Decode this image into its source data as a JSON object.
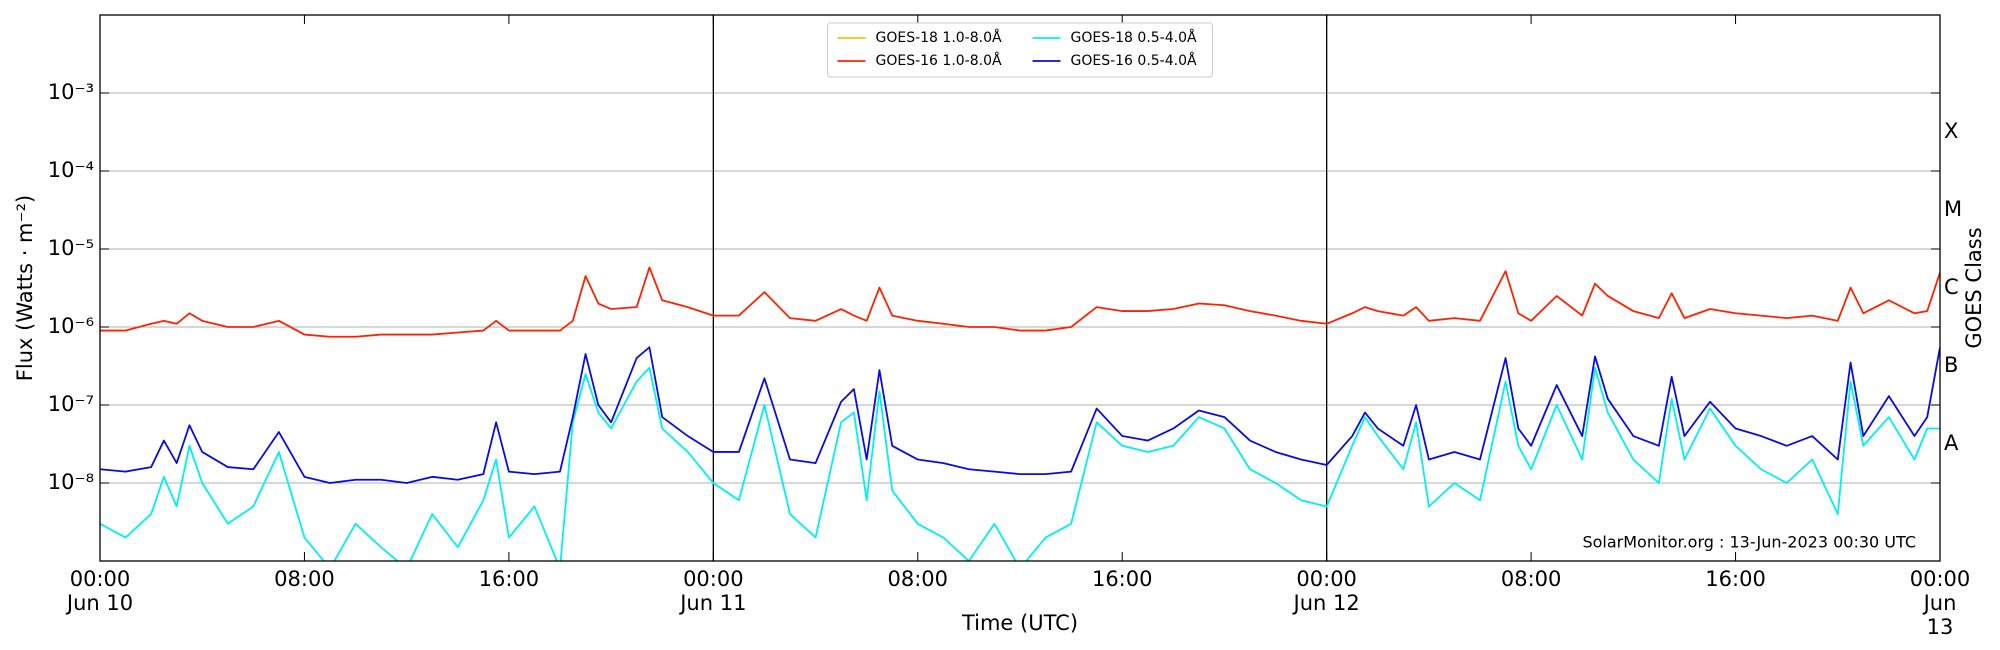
{
  "chart_data": {
    "type": "line",
    "ylabel": "Flux (Watts · m⁻²)",
    "xlabel": "Time (UTC)",
    "y2label": "GOES Class",
    "annotation": "SolarMonitor.org : 13-Jun-2023 00:30 UTC",
    "log_scale": true,
    "grid": true,
    "legend_position": "upper center",
    "xlim": [
      0,
      72
    ],
    "xticks": [
      {
        "value": 0,
        "label": "00:00\nJun 10"
      },
      {
        "value": 8,
        "label": "08:00"
      },
      {
        "value": 16,
        "label": "16:00"
      },
      {
        "value": 24,
        "label": "00:00\nJun 11"
      },
      {
        "value": 32,
        "label": "08:00"
      },
      {
        "value": 40,
        "label": "16:00"
      },
      {
        "value": 48,
        "label": "00:00\nJun 12"
      },
      {
        "value": 56,
        "label": "08:00"
      },
      {
        "value": 64,
        "label": "16:00"
      },
      {
        "value": 72,
        "label": "00:00\nJun 13"
      }
    ],
    "vlines": [
      24,
      48
    ],
    "ylim": [
      1e-09,
      0.01
    ],
    "yticks": [
      {
        "value": 1e-08,
        "label": "10⁻⁸"
      },
      {
        "value": 1e-07,
        "label": "10⁻⁷"
      },
      {
        "value": 1e-06,
        "label": "10⁻⁶"
      },
      {
        "value": 1e-05,
        "label": "10⁻⁵"
      },
      {
        "value": 0.0001,
        "label": "10⁻⁴"
      },
      {
        "value": 0.001,
        "label": "10⁻³"
      }
    ],
    "y2lim": [
      1e-09,
      0.01
    ],
    "y2ticks": [
      {
        "value": 3.16e-08,
        "label": "A"
      },
      {
        "value": 3.16e-07,
        "label": "B"
      },
      {
        "value": 3.16e-06,
        "label": "C"
      },
      {
        "value": 3.16e-05,
        "label": "M"
      },
      {
        "value": 0.000316,
        "label": "X"
      }
    ],
    "x": [
      0,
      1,
      2,
      2.5,
      3,
      3.5,
      4,
      5,
      6,
      7,
      8,
      9,
      10,
      11,
      12,
      13,
      14,
      15,
      15.5,
      16,
      17,
      18,
      18.5,
      19,
      19.5,
      20,
      21,
      21.5,
      22,
      23,
      24,
      25,
      26,
      27,
      28,
      29,
      29.5,
      30,
      30.5,
      31,
      32,
      33,
      34,
      35,
      36,
      37,
      38,
      39,
      40,
      41,
      42,
      43,
      44,
      45,
      46,
      47,
      48,
      49,
      49.5,
      50,
      51,
      51.5,
      52,
      53,
      54,
      55,
      55.5,
      56,
      57,
      58,
      58.5,
      59,
      60,
      61,
      61.5,
      62,
      63,
      64,
      65,
      66,
      67,
      68,
      68.5,
      69,
      70,
      71,
      71.5,
      72
    ],
    "series": [
      {
        "name": "GOES-18 1.0-8.0Å",
        "color": "#f5c400",
        "values": [
          null,
          null,
          null,
          null,
          null,
          null,
          null,
          null,
          null,
          null,
          null,
          null,
          null,
          null,
          null,
          null,
          null,
          null,
          null,
          null,
          null,
          null,
          null,
          null,
          null,
          null,
          null,
          null,
          null,
          null,
          null,
          null,
          null,
          null,
          null,
          null,
          null,
          null,
          null,
          null,
          null,
          null,
          null,
          null,
          null,
          null,
          null,
          null,
          null,
          null,
          null,
          null,
          null,
          null,
          null,
          null,
          null,
          null,
          null,
          null,
          null,
          null,
          null,
          null,
          null,
          null,
          null,
          null,
          null,
          null,
          null,
          null,
          null,
          null,
          null,
          null,
          null,
          null,
          null,
          null,
          null,
          null,
          null,
          null,
          null,
          null,
          null,
          null
        ]
      },
      {
        "name": "GOES-16 1.0-8.0Å",
        "color": "#ff2200",
        "values": [
          9e-07,
          9e-07,
          1.1e-06,
          1.2e-06,
          1.1e-06,
          1.5e-06,
          1.2e-06,
          1e-06,
          1e-06,
          1.2e-06,
          8e-07,
          7.5e-07,
          7.5e-07,
          8e-07,
          8e-07,
          8e-07,
          8.5e-07,
          9e-07,
          1.2e-06,
          9e-07,
          9e-07,
          9e-07,
          1.2e-06,
          4.5e-06,
          2e-06,
          1.7e-06,
          1.8e-06,
          5.8e-06,
          2.2e-06,
          1.8e-06,
          1.4e-06,
          1.4e-06,
          2.8e-06,
          1.3e-06,
          1.2e-06,
          1.7e-06,
          1.4e-06,
          1.2e-06,
          3.2e-06,
          1.4e-06,
          1.2e-06,
          1.1e-06,
          1e-06,
          1e-06,
          9e-07,
          9e-07,
          1e-06,
          1.8e-06,
          1.6e-06,
          1.6e-06,
          1.7e-06,
          2e-06,
          1.9e-06,
          1.6e-06,
          1.4e-06,
          1.2e-06,
          1.1e-06,
          1.5e-06,
          1.8e-06,
          1.6e-06,
          1.4e-06,
          1.8e-06,
          1.2e-06,
          1.3e-06,
          1.2e-06,
          5.2e-06,
          1.5e-06,
          1.2e-06,
          2.5e-06,
          1.4e-06,
          3.6e-06,
          2.5e-06,
          1.6e-06,
          1.3e-06,
          2.7e-06,
          1.3e-06,
          1.7e-06,
          1.5e-06,
          1.4e-06,
          1.3e-06,
          1.4e-06,
          1.2e-06,
          3.2e-06,
          1.5e-06,
          2.2e-06,
          1.5e-06,
          1.6e-06,
          5e-06
        ]
      },
      {
        "name": "GOES-18 0.5-4.0Å",
        "color": "#00f0f0",
        "values": [
          3e-09,
          2e-09,
          4e-09,
          1.2e-08,
          5e-09,
          3e-08,
          1e-08,
          3e-09,
          5e-09,
          2.5e-08,
          2e-09,
          8e-10,
          3e-09,
          1.5e-09,
          8e-10,
          4e-09,
          1.5e-09,
          6e-09,
          2e-08,
          2e-09,
          5e-09,
          8e-10,
          6e-08,
          2.5e-07,
          8e-08,
          5e-08,
          2e-07,
          3e-07,
          5e-08,
          2.5e-08,
          1e-08,
          6e-09,
          1e-07,
          4e-09,
          2e-09,
          6e-08,
          8e-08,
          6e-09,
          1.5e-07,
          8e-09,
          3e-09,
          2e-09,
          1e-09,
          3e-09,
          8e-10,
          2e-09,
          3e-09,
          6e-08,
          3e-08,
          2.5e-08,
          3e-08,
          7e-08,
          5e-08,
          1.5e-08,
          1e-08,
          6e-09,
          5e-09,
          3e-08,
          7e-08,
          4e-08,
          1.5e-08,
          6e-08,
          5e-09,
          1e-08,
          6e-09,
          2e-07,
          3e-08,
          1.5e-08,
          1e-07,
          2e-08,
          3e-07,
          8e-08,
          2e-08,
          1e-08,
          1.2e-07,
          2e-08,
          9e-08,
          3e-08,
          1.5e-08,
          1e-08,
          2e-08,
          4e-09,
          2e-07,
          3e-08,
          7e-08,
          2e-08,
          5e-08,
          5e-08
        ]
      },
      {
        "name": "GOES-16 0.5-4.0Å",
        "color": "#0a0ae6",
        "values": [
          1.5e-08,
          1.4e-08,
          1.6e-08,
          3.5e-08,
          1.8e-08,
          5.5e-08,
          2.5e-08,
          1.6e-08,
          1.5e-08,
          4.5e-08,
          1.2e-08,
          1e-08,
          1.1e-08,
          1.1e-08,
          1e-08,
          1.2e-08,
          1.1e-08,
          1.3e-08,
          6e-08,
          1.4e-08,
          1.3e-08,
          1.4e-08,
          7e-08,
          4.5e-07,
          1e-07,
          6e-08,
          4e-07,
          5.5e-07,
          7e-08,
          4e-08,
          2.5e-08,
          2.5e-08,
          2.2e-07,
          2e-08,
          1.8e-08,
          1.1e-07,
          1.6e-07,
          2e-08,
          2.8e-07,
          3e-08,
          2e-08,
          1.8e-08,
          1.5e-08,
          1.4e-08,
          1.3e-08,
          1.3e-08,
          1.4e-08,
          9e-08,
          4e-08,
          3.5e-08,
          5e-08,
          8.5e-08,
          7e-08,
          3.5e-08,
          2.5e-08,
          2e-08,
          1.7e-08,
          4e-08,
          8e-08,
          5e-08,
          3e-08,
          1e-07,
          2e-08,
          2.5e-08,
          2e-08,
          4e-07,
          5e-08,
          3e-08,
          1.8e-07,
          4e-08,
          4.2e-07,
          1.2e-07,
          4e-08,
          3e-08,
          2.3e-07,
          4e-08,
          1.1e-07,
          5e-08,
          4e-08,
          3e-08,
          4e-08,
          2e-08,
          3.5e-07,
          4e-08,
          1.3e-07,
          4e-08,
          7e-08,
          5.5e-07
        ]
      }
    ]
  }
}
